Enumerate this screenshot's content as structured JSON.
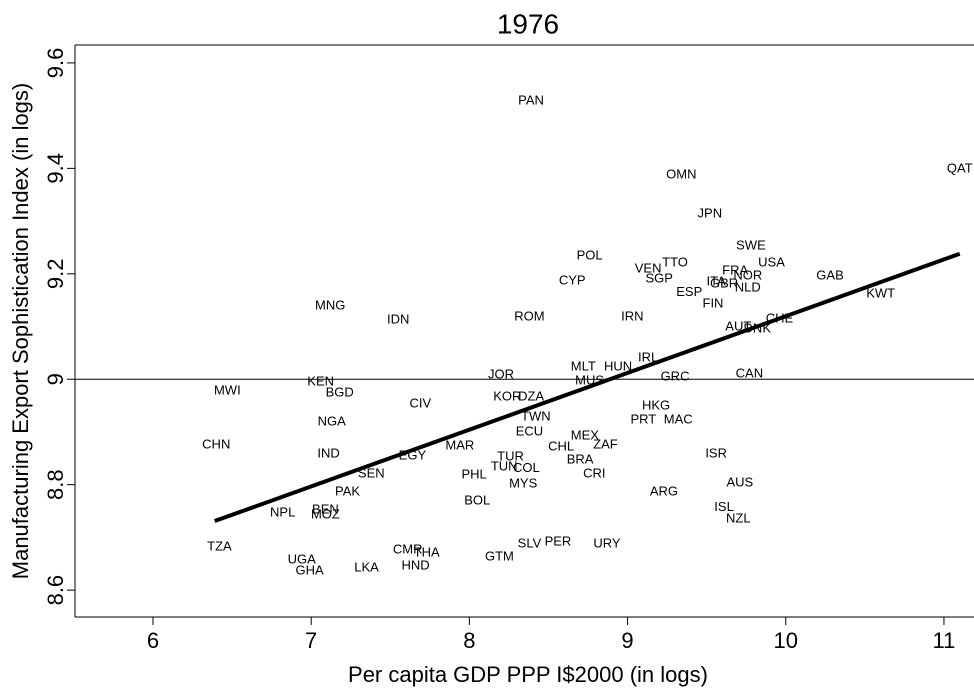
{
  "chart_data": {
    "type": "scatter",
    "title": "1976",
    "x_label": "Per capita GDP PPP I$2000 (in logs)",
    "y_label": "Manufacturing Export Sophistication Index (in logs)",
    "labels": [
      "PAN",
      "OMN",
      "QAT",
      "JPN",
      "SWE",
      "POL",
      "TTO",
      "USA",
      "VEN",
      "FRA",
      "GAB",
      "NOR",
      "SGP",
      "CYP",
      "ITA",
      "GBR",
      "NLD",
      "ESP",
      "KWT",
      "FIN",
      "MNG",
      "ROM",
      "IRN",
      "IDN",
      "CHE",
      "AUT",
      "DNK",
      "IRL",
      "MLT",
      "HUN",
      "JOR",
      "CAN",
      "GRC",
      "MUS",
      "KEN",
      "MWI",
      "BGD",
      "KOR",
      "DZA",
      "CIV",
      "HKG",
      "TWN",
      "PRT",
      "MAC",
      "NGA",
      "ECU",
      "MEX",
      "CHN",
      "ZAF",
      "MAR",
      "CHL",
      "IND",
      "ISR",
      "EGY",
      "TUR",
      "BRA",
      "SEN",
      "TUN",
      "COL",
      "CRI",
      "PHL",
      "MYS",
      "AUS",
      "PAK",
      "ARG",
      "BOL",
      "ISL",
      "NPL",
      "BEN",
      "MOZ",
      "NZL",
      "TZA",
      "SLV",
      "PER",
      "URY",
      "CMR",
      "THA",
      "GTM",
      "UGA",
      "HND",
      "LKA",
      "GHA"
    ],
    "x": [
      8.39,
      9.34,
      11.1,
      9.52,
      9.78,
      8.76,
      9.3,
      9.91,
      9.13,
      9.68,
      10.28,
      9.76,
      9.2,
      8.65,
      9.56,
      9.61,
      9.76,
      9.39,
      10.6,
      9.54,
      7.12,
      8.38,
      9.03,
      7.55,
      9.96,
      9.7,
      9.82,
      9.13,
      8.72,
      8.94,
      8.2,
      9.77,
      9.3,
      8.76,
      7.06,
      6.47,
      7.18,
      8.24,
      8.39,
      7.69,
      9.18,
      8.42,
      9.1,
      9.32,
      7.13,
      8.38,
      8.73,
      6.4,
      8.86,
      7.94,
      8.58,
      7.11,
      9.56,
      7.64,
      8.26,
      8.7,
      7.38,
      8.22,
      8.36,
      8.79,
      8.03,
      8.34,
      9.71,
      7.23,
      9.23,
      8.05,
      9.61,
      6.82,
      7.09,
      7.09,
      9.7,
      6.42,
      8.38,
      8.56,
      8.87,
      7.61,
      7.73,
      8.19,
      6.94,
      7.66,
      7.35,
      6.99
    ],
    "values": [
      9.528,
      9.387,
      9.399,
      9.313,
      9.253,
      9.234,
      9.22,
      9.22,
      9.209,
      9.205,
      9.196,
      9.196,
      9.19,
      9.186,
      9.184,
      9.181,
      9.173,
      9.164,
      9.162,
      9.143,
      9.139,
      9.118,
      9.118,
      9.112,
      9.114,
      9.099,
      9.095,
      9.04,
      9.023,
      9.023,
      9.008,
      9.01,
      9.004,
      8.997,
      8.995,
      8.978,
      8.974,
      8.966,
      8.966,
      8.953,
      8.949,
      8.928,
      8.923,
      8.923,
      8.919,
      8.9,
      8.892,
      8.875,
      8.875,
      8.873,
      8.871,
      8.858,
      8.858,
      8.854,
      8.852,
      8.847,
      8.82,
      8.833,
      8.831,
      8.82,
      8.818,
      8.801,
      8.803,
      8.786,
      8.786,
      8.769,
      8.757,
      8.746,
      8.752,
      8.742,
      8.735,
      8.682,
      8.687,
      8.691,
      8.687,
      8.676,
      8.67,
      8.663,
      8.657,
      8.646,
      8.642,
      8.636
    ],
    "fit": {
      "x": [
        6.39,
        11.1
      ],
      "values": [
        8.731,
        9.238
      ],
      "color": "#000000"
    },
    "reference_line": 9,
    "xlim": [
      5.507,
      11.19
    ],
    "ylim": [
      8.549,
      9.634
    ],
    "xticks": [
      6,
      7,
      8,
      9,
      10,
      11
    ],
    "yticks": [
      8.6,
      8.8,
      9,
      9.2,
      9.4,
      9.6
    ]
  }
}
